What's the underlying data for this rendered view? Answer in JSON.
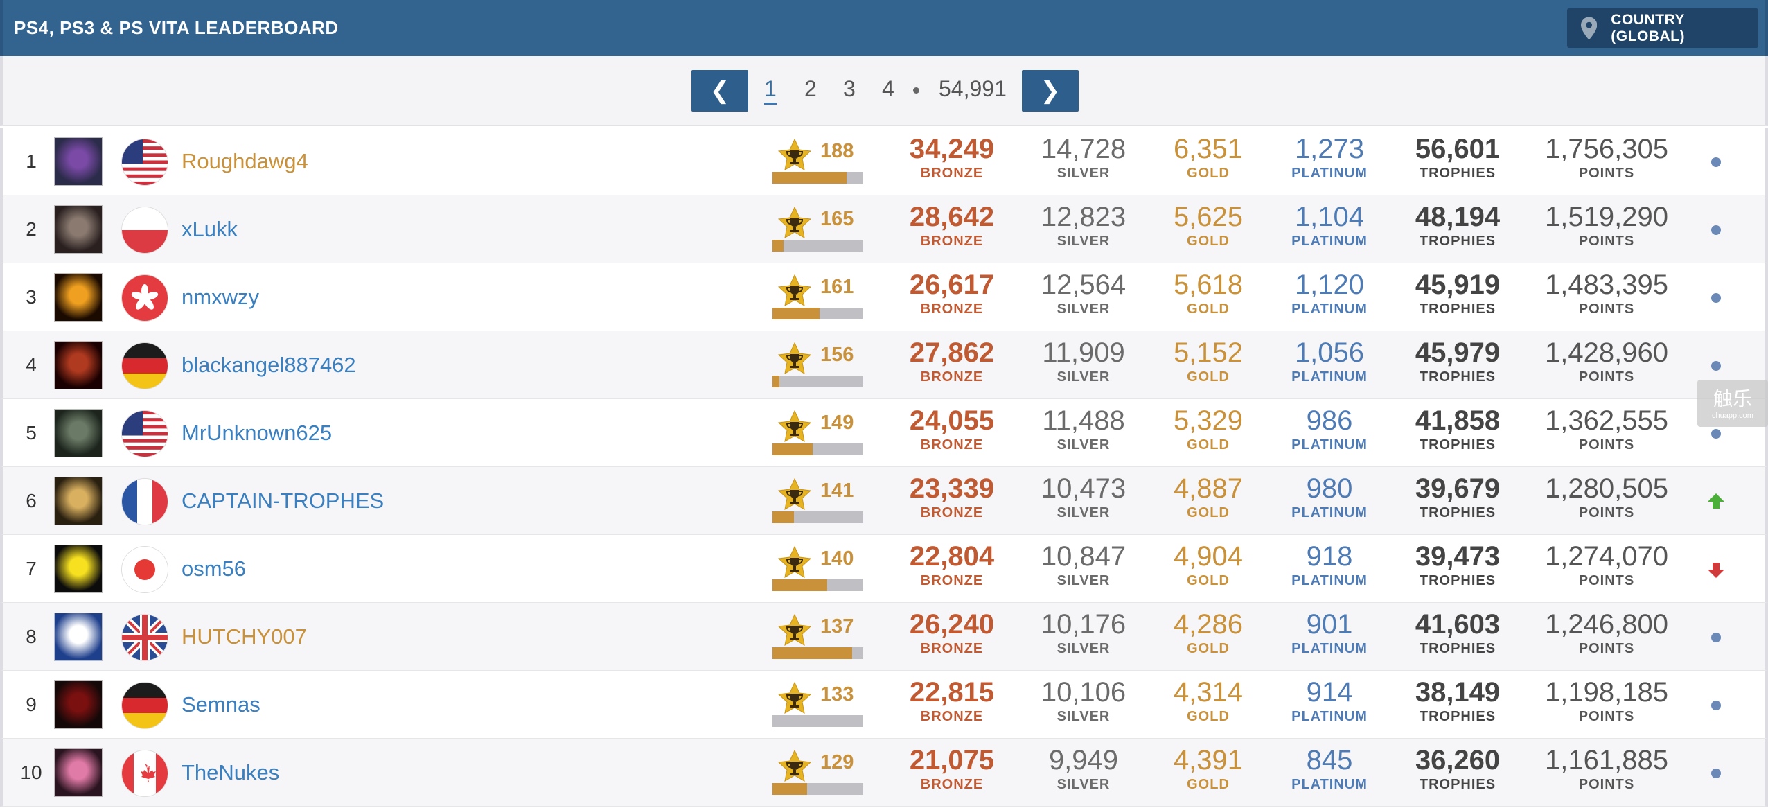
{
  "header": {
    "title": "PS4, PS3 & PS VITA LEADERBOARD",
    "country_button": "COUNTRY (GLOBAL)",
    "country_icon": "map-pin-icon"
  },
  "pagination": {
    "prev": "❮",
    "next": "❯",
    "pages": [
      "1",
      "2",
      "3",
      "4"
    ],
    "active": "1",
    "last": "54,991"
  },
  "labels": {
    "bronze": "BRONZE",
    "silver": "SILVER",
    "gold": "GOLD",
    "platinum": "PLATINUM",
    "trophies": "TROPHIES",
    "points": "POINTS"
  },
  "colors": {
    "header": "#33638f",
    "bronze": "#c05a33",
    "gold": "#c9913a",
    "platinum": "#4f7bb4",
    "link": "#3a7fbf"
  },
  "watermark": {
    "line1": "触乐",
    "line2": "chuapp.com"
  },
  "rows": [
    {
      "rank": "1",
      "name": "Roughdawg4",
      "name_gold": true,
      "flag": "us",
      "level": "188",
      "progress": 0.82,
      "bronze": "34,249",
      "silver": "14,728",
      "gold": "6,351",
      "platinum": "1,273",
      "trophies": "56,601",
      "points": "1,756,305",
      "trend": "same"
    },
    {
      "rank": "2",
      "name": "xLukk",
      "name_gold": false,
      "flag": "pl",
      "level": "165",
      "progress": 0.12,
      "bronze": "28,642",
      "silver": "12,823",
      "gold": "5,625",
      "platinum": "1,104",
      "trophies": "48,194",
      "points": "1,519,290",
      "trend": "same"
    },
    {
      "rank": "3",
      "name": "nmxwzy",
      "name_gold": false,
      "flag": "hk",
      "level": "161",
      "progress": 0.52,
      "bronze": "26,617",
      "silver": "12,564",
      "gold": "5,618",
      "platinum": "1,120",
      "trophies": "45,919",
      "points": "1,483,395",
      "trend": "same"
    },
    {
      "rank": "4",
      "name": "blackangel887462",
      "name_gold": false,
      "flag": "de",
      "level": "156",
      "progress": 0.08,
      "bronze": "27,862",
      "silver": "11,909",
      "gold": "5,152",
      "platinum": "1,056",
      "trophies": "45,979",
      "points": "1,428,960",
      "trend": "same"
    },
    {
      "rank": "5",
      "name": "MrUnknown625",
      "name_gold": false,
      "flag": "us",
      "level": "149",
      "progress": 0.44,
      "bronze": "24,055",
      "silver": "11,488",
      "gold": "5,329",
      "platinum": "986",
      "trophies": "41,858",
      "points": "1,362,555",
      "trend": "same"
    },
    {
      "rank": "6",
      "name": "CAPTAIN-TROPHES",
      "name_gold": false,
      "flag": "fr",
      "level": "141",
      "progress": 0.24,
      "bronze": "23,339",
      "silver": "10,473",
      "gold": "4,887",
      "platinum": "980",
      "trophies": "39,679",
      "points": "1,280,505",
      "trend": "up"
    },
    {
      "rank": "7",
      "name": "osm56",
      "name_gold": false,
      "flag": "jp",
      "level": "140",
      "progress": 0.6,
      "bronze": "22,804",
      "silver": "10,847",
      "gold": "4,904",
      "platinum": "918",
      "trophies": "39,473",
      "points": "1,274,070",
      "trend": "down"
    },
    {
      "rank": "8",
      "name": "HUTCHY007",
      "name_gold": true,
      "flag": "gb",
      "level": "137",
      "progress": 0.88,
      "bronze": "26,240",
      "silver": "10,176",
      "gold": "4,286",
      "platinum": "901",
      "trophies": "41,603",
      "points": "1,246,800",
      "trend": "same"
    },
    {
      "rank": "9",
      "name": "Semnas",
      "name_gold": false,
      "flag": "de",
      "level": "133",
      "progress": 0.0,
      "bronze": "22,815",
      "silver": "10,106",
      "gold": "4,314",
      "platinum": "914",
      "trophies": "38,149",
      "points": "1,198,185",
      "trend": "same"
    },
    {
      "rank": "10",
      "name": "TheNukes",
      "name_gold": false,
      "flag": "ca",
      "level": "129",
      "progress": 0.38,
      "bronze": "21,075",
      "silver": "9,949",
      "gold": "4,391",
      "platinum": "845",
      "trophies": "36,260",
      "points": "1,161,885",
      "trend": "same"
    }
  ]
}
